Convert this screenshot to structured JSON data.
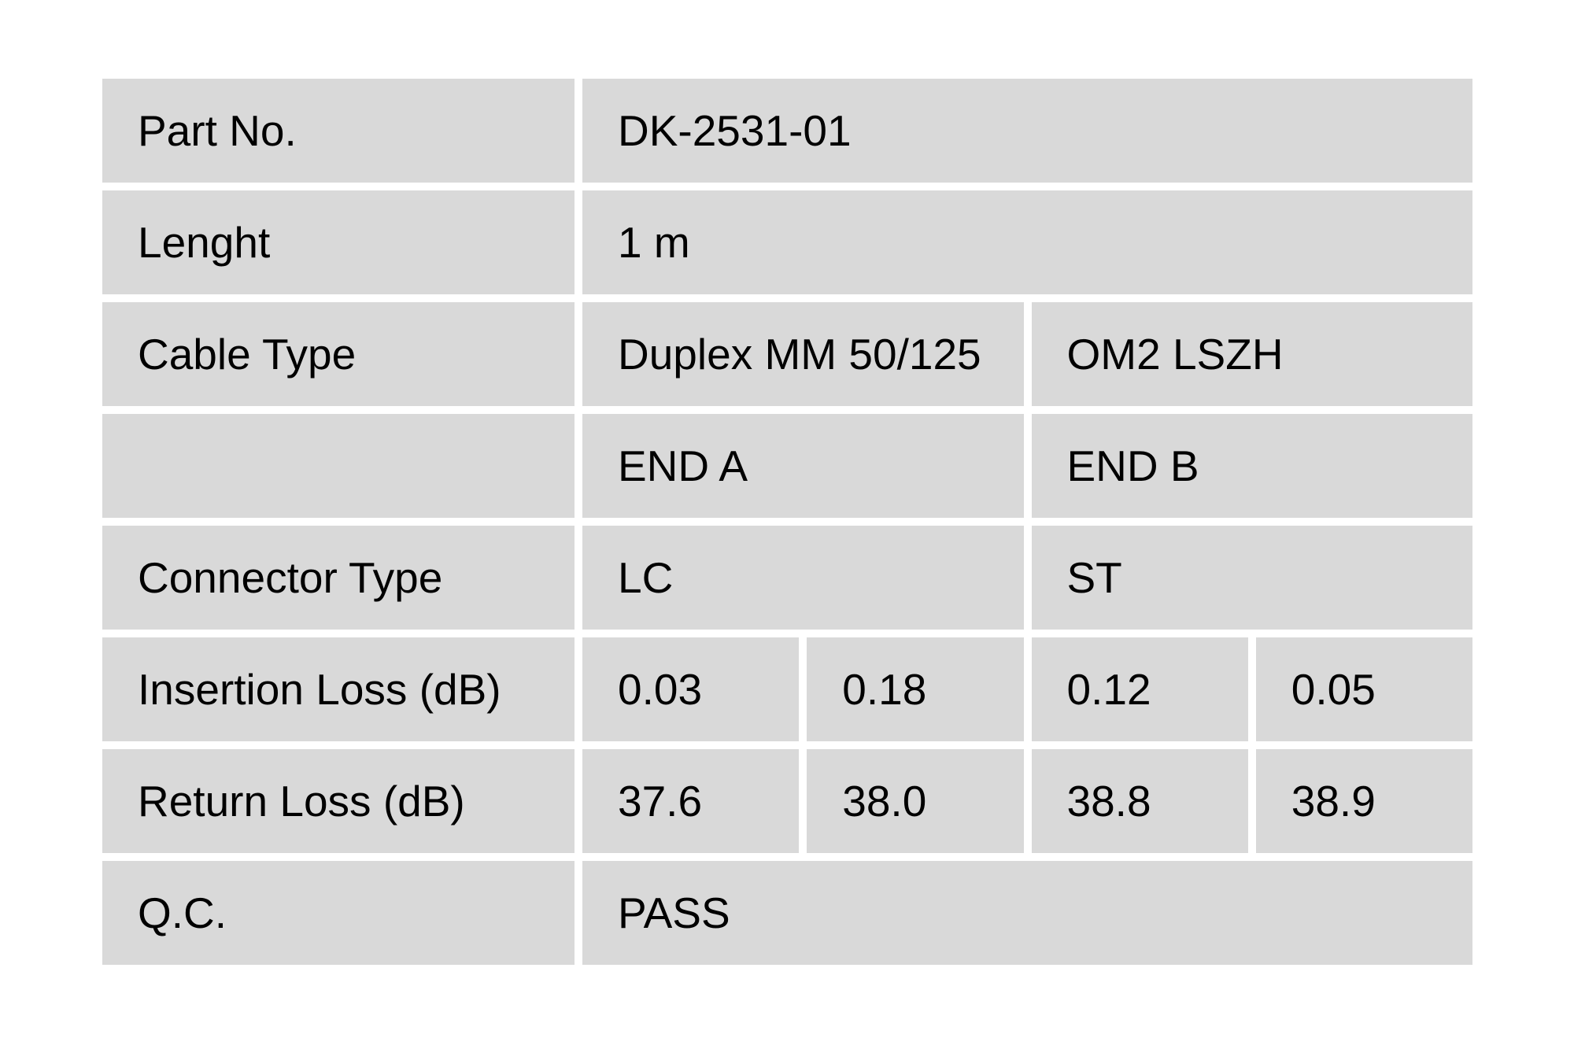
{
  "document": {
    "type": "cable-qc-report-table",
    "colors": {
      "page_background": "#ffffff",
      "cell_background": "#d9d9d9",
      "text": "#000000",
      "gutter": "#ffffff"
    },
    "table": {
      "rows": [
        {
          "label": "Part No.",
          "values": [
            {
              "text": "DK-2531-01",
              "span": 4
            }
          ]
        },
        {
          "label": "Lenght",
          "values": [
            {
              "text": "1 m",
              "span": 4
            }
          ]
        },
        {
          "label": "Cable Type",
          "values": [
            {
              "text": "Duplex MM 50/125",
              "span": 2
            },
            {
              "text": "OM2 LSZH",
              "span": 2
            }
          ]
        },
        {
          "label": "",
          "values": [
            {
              "text": "END A",
              "span": 2
            },
            {
              "text": "END B",
              "span": 2
            }
          ]
        },
        {
          "label": "Connector Type",
          "values": [
            {
              "text": "LC",
              "span": 2
            },
            {
              "text": "ST",
              "span": 2
            }
          ]
        },
        {
          "label": "Insertion Loss (dB)",
          "values": [
            {
              "text": "0.03",
              "span": 1
            },
            {
              "text": "0.18",
              "span": 1
            },
            {
              "text": "0.12",
              "span": 1
            },
            {
              "text": "0.05",
              "span": 1
            }
          ]
        },
        {
          "label": "Return Loss (dB)",
          "values": [
            {
              "text": "37.6",
              "span": 1
            },
            {
              "text": "38.0",
              "span": 1
            },
            {
              "text": "38.8",
              "span": 1
            },
            {
              "text": "38.9",
              "span": 1
            }
          ]
        },
        {
          "label": "Q.C.",
          "values": [
            {
              "text": "PASS",
              "span": 4
            }
          ]
        }
      ]
    }
  }
}
